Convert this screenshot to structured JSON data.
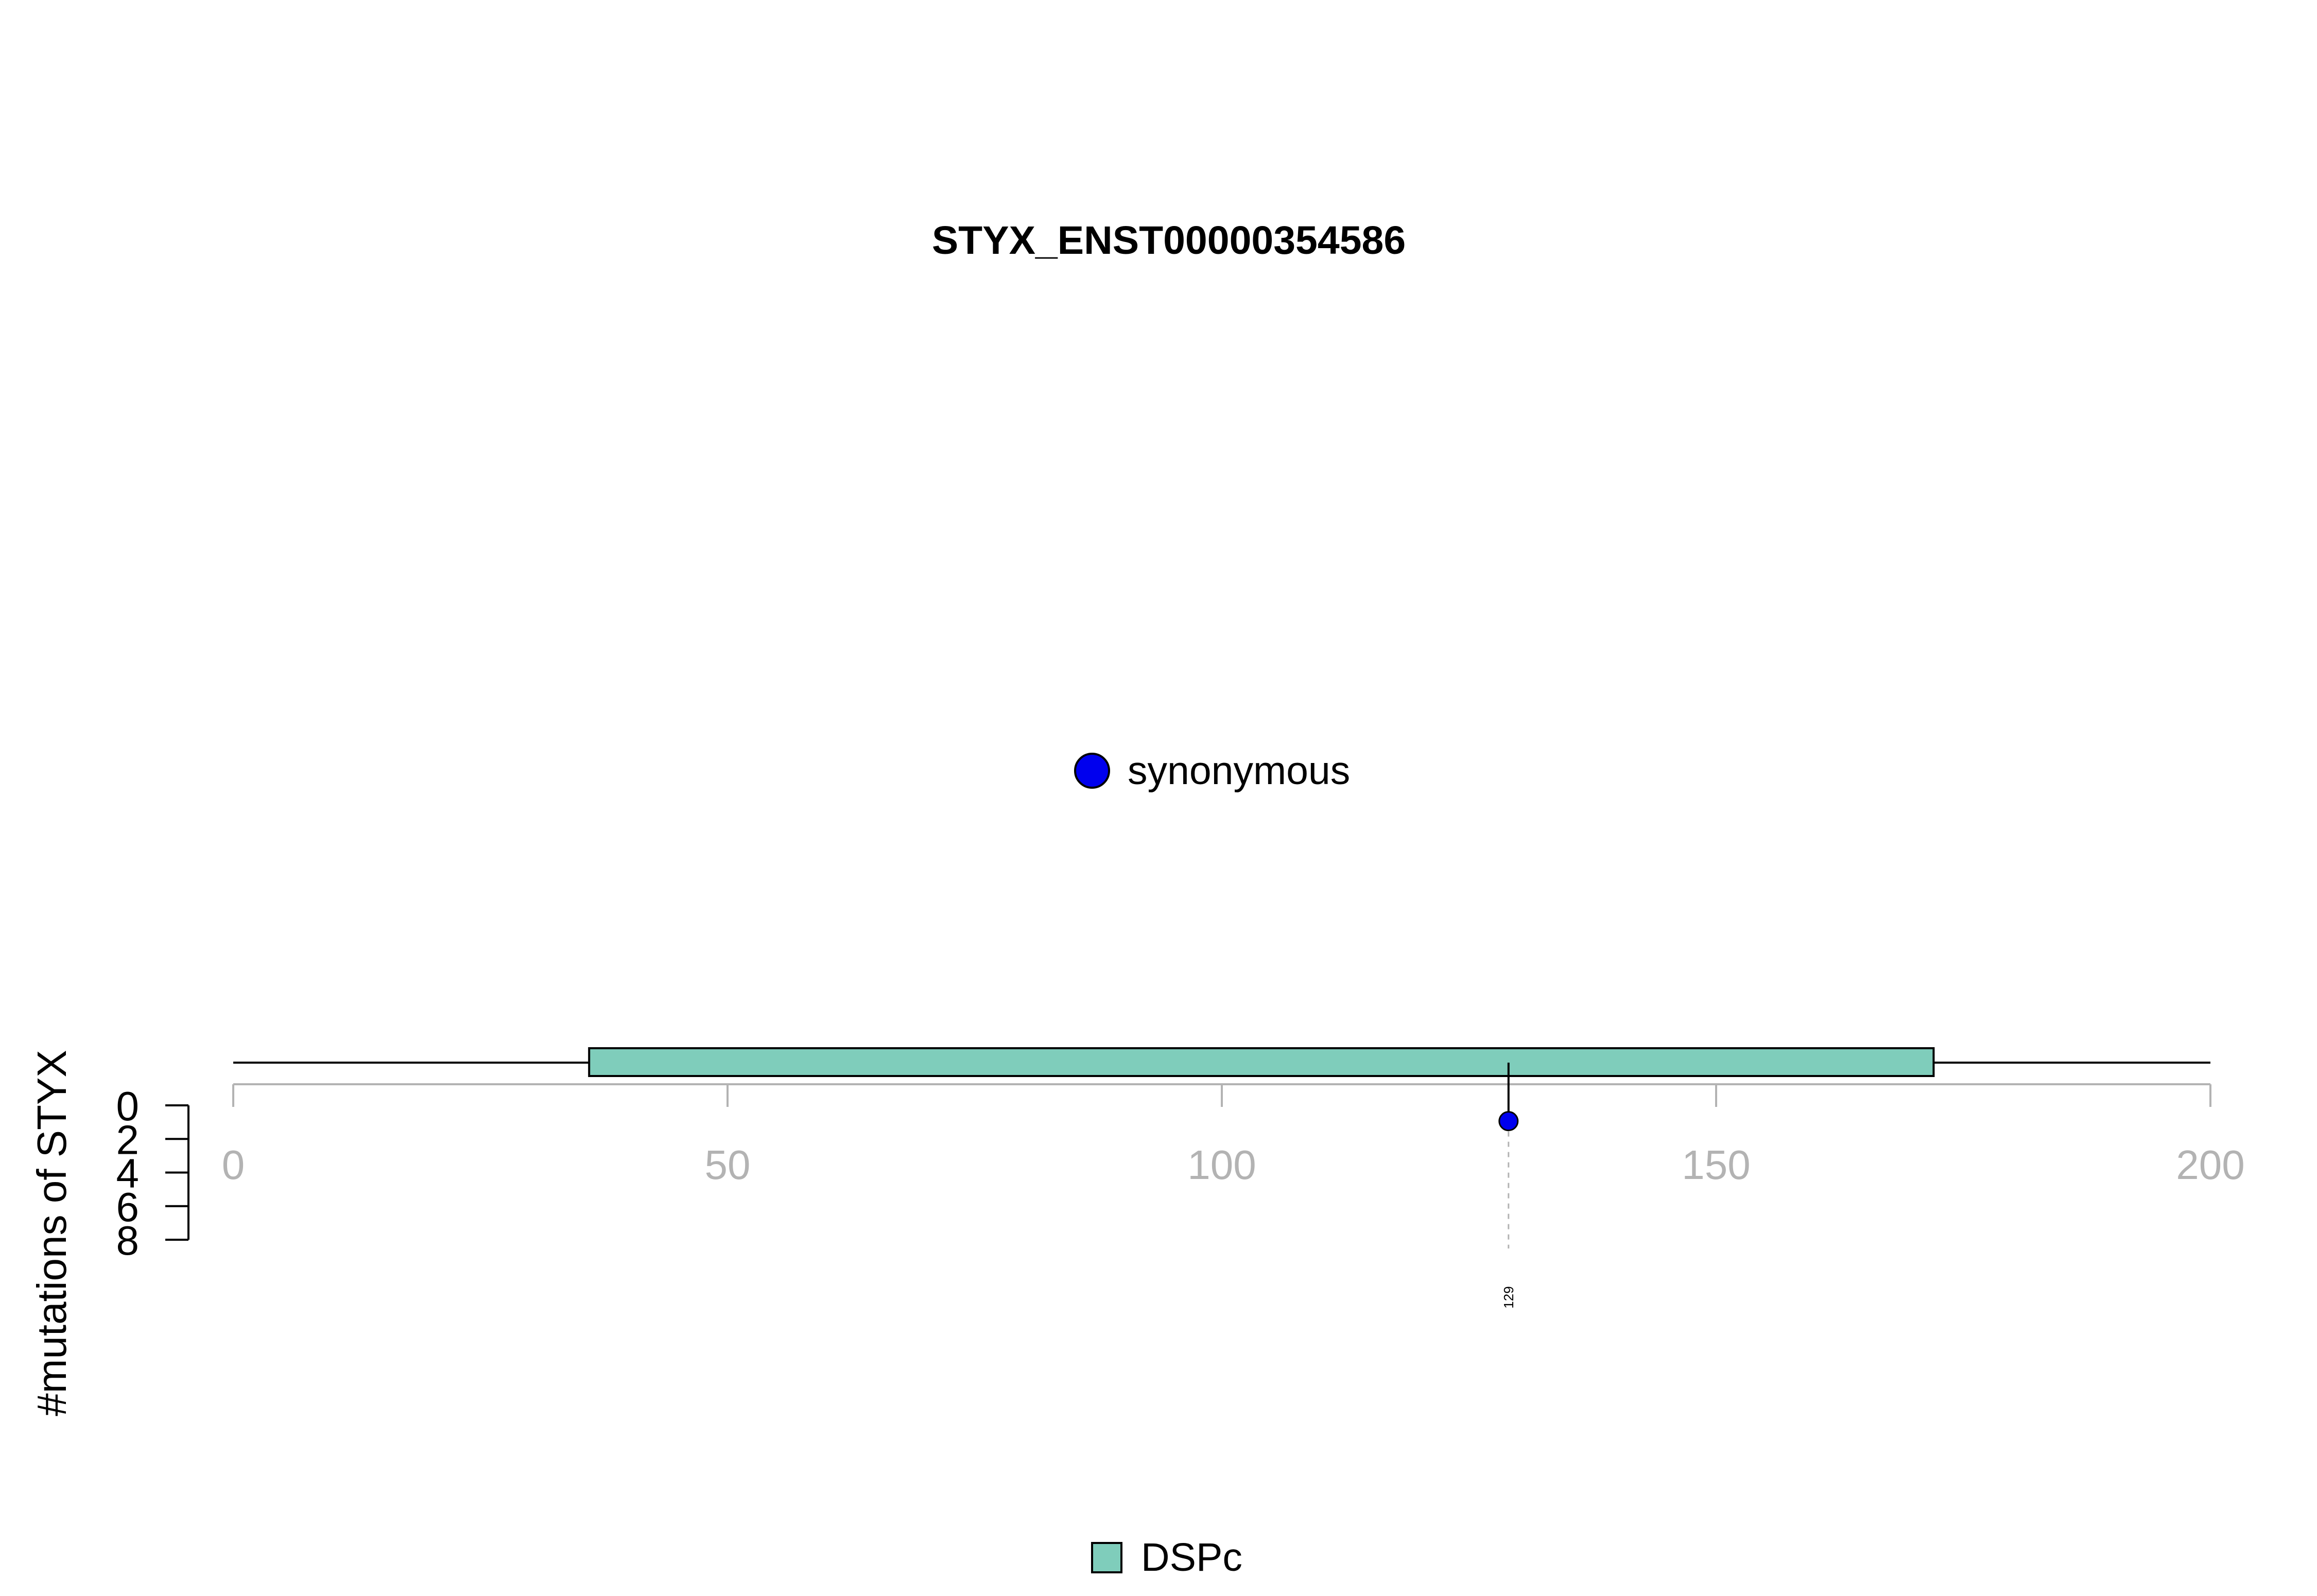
{
  "chart_data": {
    "type": "scatter",
    "title": "STYX_ENST00000354586",
    "ylabel": "#mutations of STYX",
    "xlim": [
      0,
      200
    ],
    "x_ticks": [
      "0",
      "50",
      "100",
      "150",
      "200"
    ],
    "x_tick_values": [
      0,
      50,
      100,
      150,
      200
    ],
    "ylim": [
      0,
      8
    ],
    "y_ticks": [
      "0",
      "2",
      "4",
      "6",
      "8"
    ],
    "y_tick_values": [
      0,
      2,
      4,
      6,
      8
    ],
    "protein_length": 200,
    "domains": [
      {
        "name": "DSPc",
        "start": 36,
        "end": 172,
        "color": "#7fcdbb"
      }
    ],
    "mutations": [
      {
        "position": 129,
        "count": 1,
        "category": "synonymous",
        "label": "129",
        "color": "#0000ee"
      }
    ],
    "mutation_legend": [
      {
        "label": "synonymous",
        "color": "#0000ee"
      }
    ],
    "domain_legend": [
      {
        "label": "DSPc",
        "color": "#7fcdbb"
      }
    ]
  }
}
